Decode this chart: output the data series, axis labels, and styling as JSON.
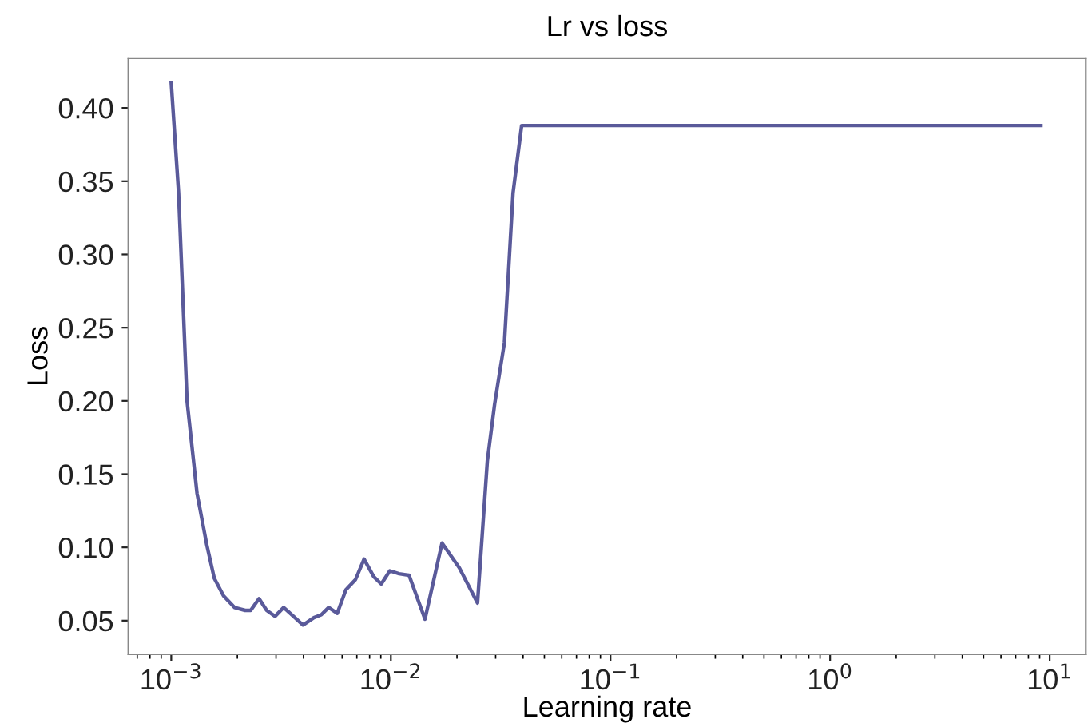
{
  "chart_data": {
    "type": "line",
    "title": "Lr vs loss",
    "xlabel": "Learning rate",
    "ylabel": "Loss",
    "log": "x",
    "grid": false,
    "marker": "none",
    "line_style": "solid",
    "xlim": [
      0.000638,
      14.6
    ],
    "ylim": [
      0.027,
      0.434
    ],
    "xticks": [
      {
        "value": 0.001,
        "label": "10$^{−3}$"
      },
      {
        "value": 0.01,
        "label": "10$^{−2}$"
      },
      {
        "value": 0.1,
        "label": "10$^{−1}$"
      },
      {
        "value": 1,
        "label": "10$^{0}$"
      },
      {
        "value": 10,
        "label": "10$^{1}$"
      }
    ],
    "yticks": [
      {
        "value": 0.05,
        "label": "0.05"
      },
      {
        "value": 0.1,
        "label": "0.10"
      },
      {
        "value": 0.15,
        "label": "0.15"
      },
      {
        "value": 0.2,
        "label": "0.20"
      },
      {
        "value": 0.25,
        "label": "0.25"
      },
      {
        "value": 0.3,
        "label": "0.30"
      },
      {
        "value": 0.35,
        "label": "0.35"
      },
      {
        "value": 0.4,
        "label": "0.40"
      }
    ],
    "series": [
      {
        "color": "#5a5a9a",
        "x": [
          0.001,
          0.00108,
          0.00118,
          0.00131,
          0.00145,
          0.00157,
          0.00173,
          0.00194,
          0.00217,
          0.0023,
          0.00251,
          0.00272,
          0.00297,
          0.00325,
          0.0036,
          0.00398,
          0.00446,
          0.00482,
          0.00521,
          0.0057,
          0.00624,
          0.0069,
          0.00755,
          0.00836,
          0.00904,
          0.00989,
          0.0109,
          0.0121,
          0.0143,
          0.0171,
          0.0205,
          0.0248,
          0.0275,
          0.0297,
          0.0329,
          0.036,
          0.0394,
          9.12
        ],
        "values": [
          0.417,
          0.342,
          0.2,
          0.137,
          0.102,
          0.079,
          0.067,
          0.059,
          0.057,
          0.057,
          0.065,
          0.057,
          0.053,
          0.059,
          0.053,
          0.047,
          0.052,
          0.054,
          0.059,
          0.055,
          0.071,
          0.078,
          0.092,
          0.08,
          0.075,
          0.084,
          0.082,
          0.081,
          0.051,
          0.103,
          0.086,
          0.062,
          0.159,
          0.198,
          0.24,
          0.342,
          0.388,
          0.388
        ]
      }
    ]
  }
}
